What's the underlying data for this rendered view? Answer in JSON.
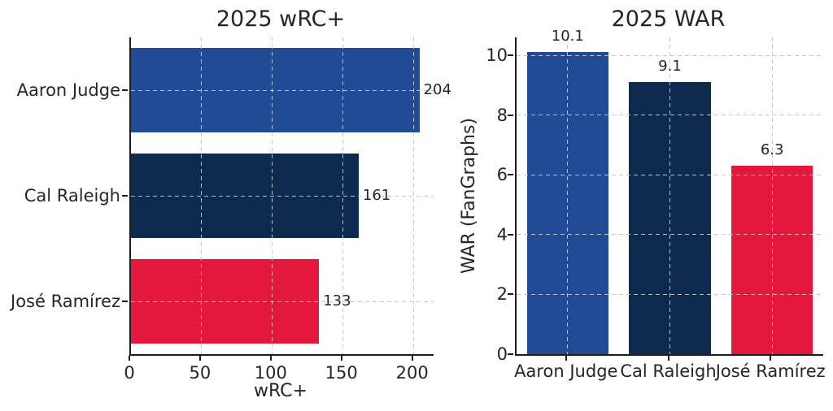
{
  "figure": {
    "background": "#ffffff",
    "axis_color": "#1c1c1c",
    "text_color": "#262626",
    "grid_color": "#c5c5c5",
    "grid_style": "dashed"
  },
  "chart_data": [
    {
      "type": "bar",
      "orientation": "horizontal",
      "title": "2025 wRC+",
      "xlabel": "wRC+",
      "categories": [
        "Aaron Judge",
        "Cal Raleigh",
        "José Ramírez"
      ],
      "values": [
        204,
        161,
        133
      ],
      "data_labels": [
        "204",
        "161",
        "133"
      ],
      "bar_colors": [
        "#214B94",
        "#0C2B4F",
        "#E3183C"
      ],
      "xlim": [
        0,
        214
      ],
      "xticks": [
        0,
        50,
        100,
        150,
        200
      ],
      "grid": "dashed-both-axes",
      "legend": "none"
    },
    {
      "type": "bar",
      "orientation": "vertical",
      "title": "2025 WAR",
      "ylabel": "WAR (FanGraphs)",
      "categories": [
        "Aaron Judge",
        "Cal Raleigh",
        "José Ramírez"
      ],
      "values": [
        10.1,
        9.1,
        6.3
      ],
      "data_labels": [
        "10.1",
        "9.1",
        "6.3"
      ],
      "bar_colors": [
        "#214B94",
        "#0C2B4F",
        "#E3183C"
      ],
      "ylim": [
        0,
        10.6
      ],
      "yticks": [
        0,
        2,
        4,
        6,
        8,
        10
      ],
      "grid": "dashed-both-axes",
      "legend": "none"
    }
  ]
}
